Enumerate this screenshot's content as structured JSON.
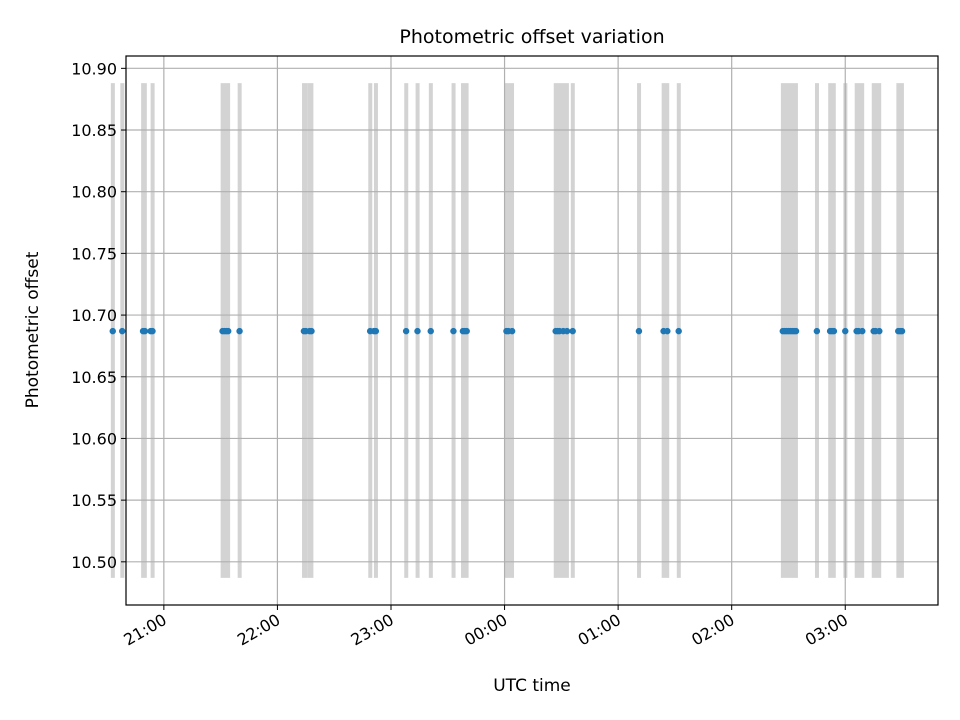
{
  "chart_data": {
    "type": "scatter",
    "title": "Photometric offset variation",
    "xlabel": "UTC time",
    "ylabel": "Photometric offset",
    "x_unit": "UTC time (HH:MM), times after 23:59 fall on the following day",
    "xlim": [
      "20:40",
      "03:49"
    ],
    "ylim": [
      10.465,
      10.91
    ],
    "x_ticks": [
      "21:00",
      "22:00",
      "23:00",
      "00:00",
      "01:00",
      "02:00",
      "03:00"
    ],
    "y_ticks": [
      "10.50",
      "10.55",
      "10.60",
      "10.65",
      "10.70",
      "10.75",
      "10.80",
      "10.85",
      "10.90"
    ],
    "grid": true,
    "series": [
      {
        "color": "#1f77b4",
        "x": [
          "20:33",
          "20:38",
          "20:49",
          "20:50",
          "20:53",
          "20:54",
          "21:31",
          "21:32",
          "21:33",
          "21:34",
          "21:40",
          "22:14",
          "22:15",
          "22:17",
          "22:18",
          "22:49",
          "22:51",
          "22:52",
          "23:08",
          "23:14",
          "23:21",
          "23:33",
          "23:38",
          "23:39",
          "23:40",
          "00:01",
          "00:02",
          "00:04",
          "00:27",
          "00:28",
          "00:29",
          "00:31",
          "00:33",
          "00:36",
          "01:11",
          "01:24",
          "01:26",
          "01:32",
          "02:27",
          "02:28",
          "02:29",
          "02:30",
          "02:31",
          "02:32",
          "02:33",
          "02:34",
          "02:45",
          "02:52",
          "02:53",
          "02:54",
          "03:00",
          "03:06",
          "03:07",
          "03:09",
          "03:15",
          "03:16",
          "03:18",
          "03:28",
          "03:29",
          "03:30"
        ],
        "y": [
          10.687,
          10.687,
          10.687,
          10.687,
          10.687,
          10.687,
          10.687,
          10.687,
          10.687,
          10.687,
          10.687,
          10.687,
          10.687,
          10.687,
          10.687,
          10.687,
          10.687,
          10.687,
          10.687,
          10.687,
          10.687,
          10.687,
          10.687,
          10.687,
          10.687,
          10.687,
          10.687,
          10.687,
          10.687,
          10.687,
          10.687,
          10.687,
          10.687,
          10.687,
          10.687,
          10.687,
          10.687,
          10.687,
          10.687,
          10.687,
          10.687,
          10.687,
          10.687,
          10.687,
          10.687,
          10.687,
          10.687,
          10.687,
          10.687,
          10.687,
          10.687,
          10.687,
          10.687,
          10.687,
          10.687,
          10.687,
          10.687,
          10.687,
          10.687,
          10.687
        ]
      }
    ],
    "bands": {
      "color": "#d3d3d3",
      "y_range": [
        10.487,
        10.888
      ],
      "intervals": [
        [
          "20:32",
          "20:34"
        ],
        [
          "20:37",
          "20:39"
        ],
        [
          "20:48",
          "20:51"
        ],
        [
          "20:53",
          "20:55"
        ],
        [
          "21:30",
          "21:35"
        ],
        [
          "21:39",
          "21:41"
        ],
        [
          "22:13",
          "22:16"
        ],
        [
          "22:16",
          "22:19"
        ],
        [
          "22:48",
          "22:50"
        ],
        [
          "22:51",
          "22:53"
        ],
        [
          "23:07",
          "23:09"
        ],
        [
          "23:13",
          "23:15"
        ],
        [
          "23:20",
          "23:22"
        ],
        [
          "23:32",
          "23:34"
        ],
        [
          "23:37",
          "23:41"
        ],
        [
          "00:00",
          "00:05"
        ],
        [
          "00:26",
          "00:34"
        ],
        [
          "00:35",
          "00:37"
        ],
        [
          "01:10",
          "01:12"
        ],
        [
          "01:23",
          "01:27"
        ],
        [
          "01:31",
          "01:33"
        ],
        [
          "02:26",
          "02:35"
        ],
        [
          "02:44",
          "02:46"
        ],
        [
          "02:51",
          "02:55"
        ],
        [
          "02:59",
          "03:01"
        ],
        [
          "03:05",
          "03:10"
        ],
        [
          "03:14",
          "03:19"
        ],
        [
          "03:27",
          "03:31"
        ]
      ]
    }
  }
}
